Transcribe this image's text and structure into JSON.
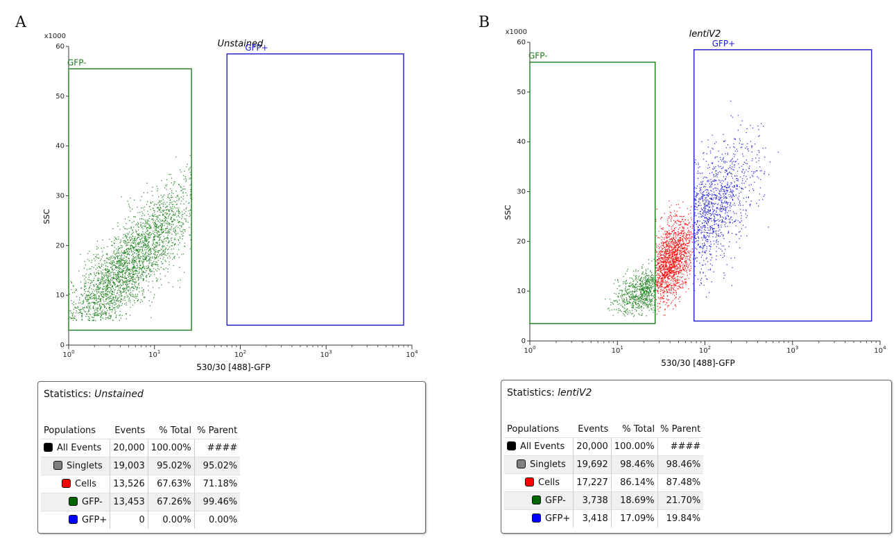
{
  "panels": [
    {
      "letter": "A",
      "chart_data": {
        "type": "scatter",
        "title": "Unstained",
        "xlabel": "530/30 [488]-GFP",
        "ylabel": "SSC",
        "y_multiplier_label": "x1000",
        "x_scale": "log",
        "xlim": [
          1,
          10000
        ],
        "ylim": [
          0,
          60
        ],
        "x_ticks": [
          1,
          10,
          100,
          1000,
          10000
        ],
        "y_ticks": [
          0,
          10,
          20,
          30,
          40,
          50,
          60
        ],
        "gates": [
          {
            "name": "GFP-",
            "color": "#1a7a1a",
            "x": [
              1,
              27
            ],
            "y": [
              3,
              55.5
            ]
          },
          {
            "name": "GFP+",
            "color": "#1a1acc",
            "x": [
              70,
              8000
            ],
            "y": [
              4,
              58.5
            ]
          }
        ],
        "clouds": [
          {
            "population": "GFP-",
            "color": "#137a13",
            "count": 2600,
            "x_log_center": 0.7,
            "x_log_sd": 0.42,
            "y_center": 16,
            "slope": 18,
            "y_sd": 5,
            "x_max": 27,
            "y_min": 5
          }
        ]
      },
      "stats": {
        "title_prefix": "Statistics:",
        "title_name": "Unstained",
        "headers": [
          "Populations",
          "Events",
          "% Total",
          "% Parent"
        ],
        "rows": [
          {
            "name": "All Events",
            "color": "#000000",
            "events": "20,000",
            "total": "100.00%",
            "parent": "####"
          },
          {
            "name": "Singlets",
            "color": "#808080",
            "events": "19,003",
            "total": "95.02%",
            "parent": "95.02%"
          },
          {
            "name": "Cells",
            "color": "#ff0000",
            "events": "13,526",
            "total": "67.63%",
            "parent": "71.18%"
          },
          {
            "name": "GFP-",
            "color": "#006400",
            "events": "13,453",
            "total": "67.26%",
            "parent": "99.46%"
          },
          {
            "name": "GFP+",
            "color": "#0000ff",
            "events": "0",
            "total": "0.00%",
            "parent": "0.00%"
          }
        ]
      }
    },
    {
      "letter": "B",
      "chart_data": {
        "type": "scatter",
        "title": "lentiV2",
        "xlabel": "530/30 [488]-GFP",
        "ylabel": "SSC",
        "y_multiplier_label": "x1000",
        "x_scale": "log",
        "xlim": [
          1,
          10000
        ],
        "ylim": [
          0,
          60
        ],
        "x_ticks": [
          1,
          10,
          100,
          1000,
          10000
        ],
        "y_ticks": [
          0,
          10,
          20,
          30,
          40,
          50,
          60
        ],
        "gates": [
          {
            "name": "GFP-",
            "color": "#1a7a1a",
            "x": [
              1,
              27
            ],
            "y": [
              3.5,
              56
            ]
          },
          {
            "name": "GFP+",
            "color": "#1a1acc",
            "x": [
              75,
              8000
            ],
            "y": [
              4,
              58.5
            ]
          }
        ],
        "clouds": [
          {
            "population": "GFP-",
            "color": "#137a13",
            "count": 700,
            "x_log_center": 1.3,
            "x_log_sd": 0.16,
            "y_center": 10,
            "slope": 6,
            "y_sd": 2.5,
            "x_max": 27,
            "y_min": 5
          },
          {
            "population": "Cells",
            "color": "#ff0000",
            "count": 1500,
            "x_log_center": 1.6,
            "x_log_sd": 0.13,
            "y_center": 16,
            "slope": 14,
            "y_sd": 4.5,
            "x_min": 27,
            "x_max": 75,
            "y_min": 5
          },
          {
            "population": "GFP+",
            "color": "#1010e0",
            "count": 1100,
            "x_log_center": 2.0,
            "x_log_sd": 0.28,
            "y_center": 25,
            "slope": 15,
            "y_sd": 6,
            "x_min": 75,
            "y_min": 6
          }
        ]
      },
      "stats": {
        "title_prefix": "Statistics:",
        "title_name": "lentiV2",
        "headers": [
          "Populations",
          "Events",
          "% Total",
          "% Parent"
        ],
        "rows": [
          {
            "name": "All Events",
            "color": "#000000",
            "events": "20,000",
            "total": "100.00%",
            "parent": "####"
          },
          {
            "name": "Singlets",
            "color": "#808080",
            "events": "19,692",
            "total": "98.46%",
            "parent": "98.46%"
          },
          {
            "name": "Cells",
            "color": "#ff0000",
            "events": "17,227",
            "total": "86.14%",
            "parent": "87.48%"
          },
          {
            "name": "GFP-",
            "color": "#006400",
            "events": "3,738",
            "total": "18.69%",
            "parent": "21.70%"
          },
          {
            "name": "GFP+",
            "color": "#0000ff",
            "events": "3,418",
            "total": "17.09%",
            "parent": "19.84%"
          }
        ]
      }
    }
  ]
}
